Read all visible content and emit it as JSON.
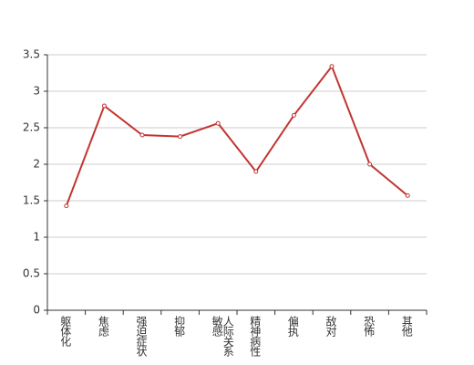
{
  "chart_data": {
    "type": "line",
    "categories": [
      "躯体化",
      "焦虑",
      "强迫症状",
      "抑郁",
      "人际关系敏感",
      "精神病性",
      "偏执",
      "敌对",
      "恐怖",
      "其他"
    ],
    "series": [
      {
        "color": "#c23531",
        "values": [
          1.43,
          2.8,
          2.4,
          2.38,
          2.56,
          1.9,
          2.67,
          3.34,
          2.0,
          1.57
        ]
      }
    ],
    "ylim": [
      0,
      3.5
    ],
    "yticks": [
      0,
      0.5,
      1,
      1.5,
      2,
      2.5,
      3,
      3.5
    ],
    "grid": true
  }
}
